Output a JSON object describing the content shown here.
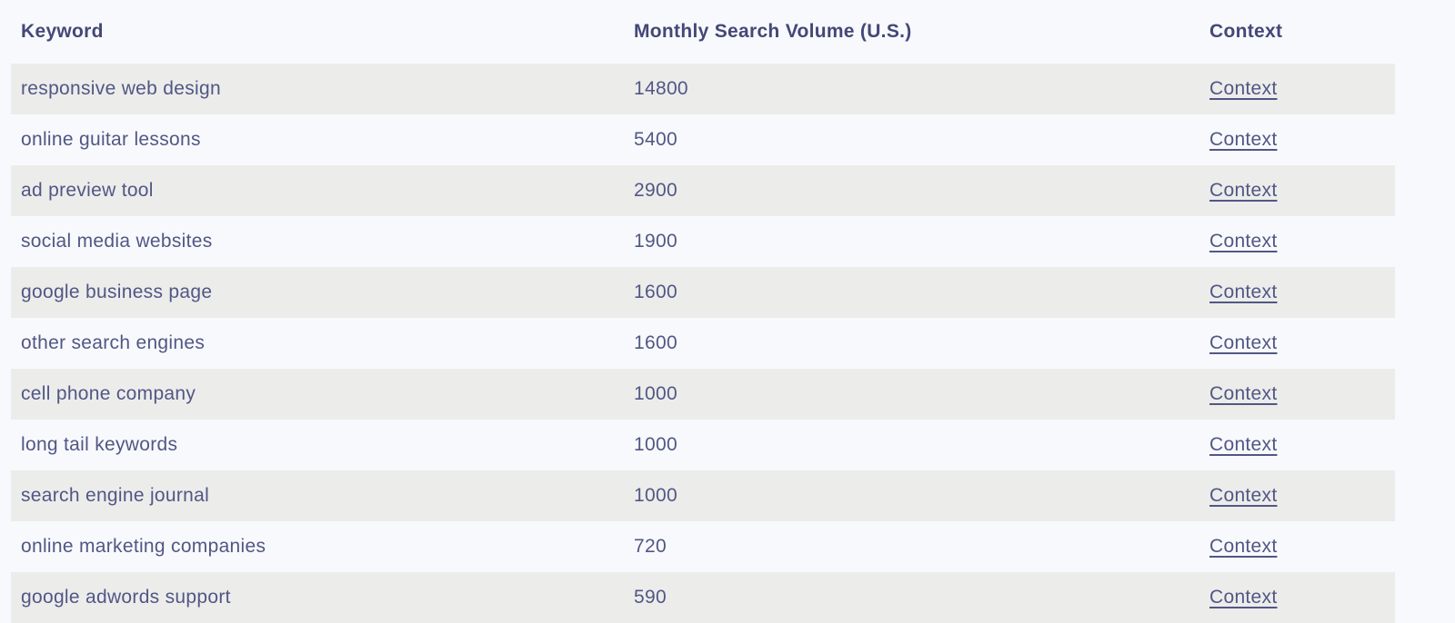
{
  "colors": {
    "page_bg": "#f8f9fc",
    "alt_row_bg": "#ececeb",
    "header_text": "#434878",
    "body_text": "#515784",
    "link_text": "#515784"
  },
  "table": {
    "columns": [
      {
        "key": "keyword",
        "label": "Keyword"
      },
      {
        "key": "volume",
        "label": "Monthly Search Volume (U.S.)"
      },
      {
        "key": "context",
        "label": "Context"
      }
    ],
    "context_link_label": "Context",
    "rows": [
      {
        "keyword": "responsive web design",
        "volume": "14800"
      },
      {
        "keyword": "online guitar lessons",
        "volume": "5400"
      },
      {
        "keyword": "ad preview tool",
        "volume": "2900"
      },
      {
        "keyword": "social media websites",
        "volume": "1900"
      },
      {
        "keyword": "google business page",
        "volume": "1600"
      },
      {
        "keyword": "other search engines",
        "volume": "1600"
      },
      {
        "keyword": "cell phone company",
        "volume": "1000"
      },
      {
        "keyword": "long tail keywords",
        "volume": "1000"
      },
      {
        "keyword": "search engine journal",
        "volume": "1000"
      },
      {
        "keyword": "online marketing companies",
        "volume": "720"
      },
      {
        "keyword": "google adwords support",
        "volume": "590"
      }
    ]
  }
}
